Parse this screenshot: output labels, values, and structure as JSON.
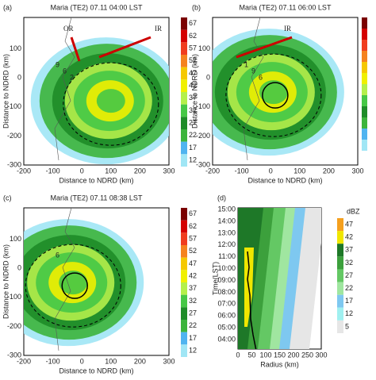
{
  "colorbar_colors": [
    "#7a0000",
    "#d40000",
    "#f03c1e",
    "#f5821e",
    "#f5c800",
    "#f0f000",
    "#b4f04b",
    "#46c846",
    "#1e8c28",
    "#3cb43c",
    "#50b4f0",
    "#a0e6f5"
  ],
  "panels": [
    {
      "label": "(a)",
      "title": "Maria  (TE2)  07.11 04:00 LST",
      "xlabel": "Distance to NDRD (km)",
      "ylabel": "Distance to NDRD (km)",
      "xticks": [
        -200,
        -100,
        0,
        100,
        200,
        300
      ],
      "yticks": [
        -300,
        -200,
        -100,
        0,
        100
      ],
      "annotations": [
        "OR",
        "IR"
      ],
      "marks": [
        "9",
        "6",
        "2"
      ],
      "colorbar_labels": [
        "67",
        "62",
        "57",
        "52",
        "47",
        "42",
        "37",
        "32",
        "27",
        "22",
        "17",
        "12"
      ]
    },
    {
      "label": "(b)",
      "title": "Maria  (TE2)  07.11 06:00 LST",
      "xlabel": "Distance to NDRD (km)",
      "ylabel": "Distance to NDRD (km)",
      "xticks": [
        -200,
        -100,
        0,
        100,
        200,
        300
      ],
      "yticks": [
        -300,
        -200,
        -100,
        0,
        100
      ],
      "annotations": [
        "IR"
      ],
      "marks": [
        "1",
        "9",
        "6"
      ]
    },
    {
      "label": "(c)",
      "title": "Maria  (TE2)  07.11 08:38 LST",
      "xlabel": "Distance to NDRD (km)",
      "ylabel": "Distance to NDRD (km)",
      "xticks": [
        -200,
        -100,
        0,
        100,
        200,
        300
      ],
      "yticks": [
        -300,
        -200,
        -100,
        0,
        100
      ],
      "marks": [
        "6"
      ],
      "colorbar_labels": [
        "67",
        "62",
        "57",
        "52",
        "47",
        "42",
        "37",
        "32",
        "27",
        "22",
        "17",
        "12"
      ]
    },
    {
      "label": "(d)",
      "xlabel": "Radius (km)",
      "ylabel": "Time(LST)",
      "xticks": [
        0,
        50,
        100,
        150,
        200,
        250,
        300
      ],
      "yticks": [
        "04:00",
        "05:00",
        "06:00",
        "07:00",
        "08:00",
        "09:00",
        "10:00",
        "11:00",
        "12:00",
        "13:00",
        "14:00",
        "15:00"
      ],
      "colorbar_title": "dBZ",
      "colorbar_labels": [
        "47",
        "42",
        "37",
        "32",
        "27",
        "22",
        "17",
        "12",
        "5"
      ],
      "colorbar_colors": [
        "#f5a01e",
        "#f0e600",
        "#1e7828",
        "#3ca03c",
        "#64c864",
        "#a0e6a0",
        "#7ec8f0",
        "#a0f0f0",
        "#e6e6e6"
      ]
    }
  ]
}
